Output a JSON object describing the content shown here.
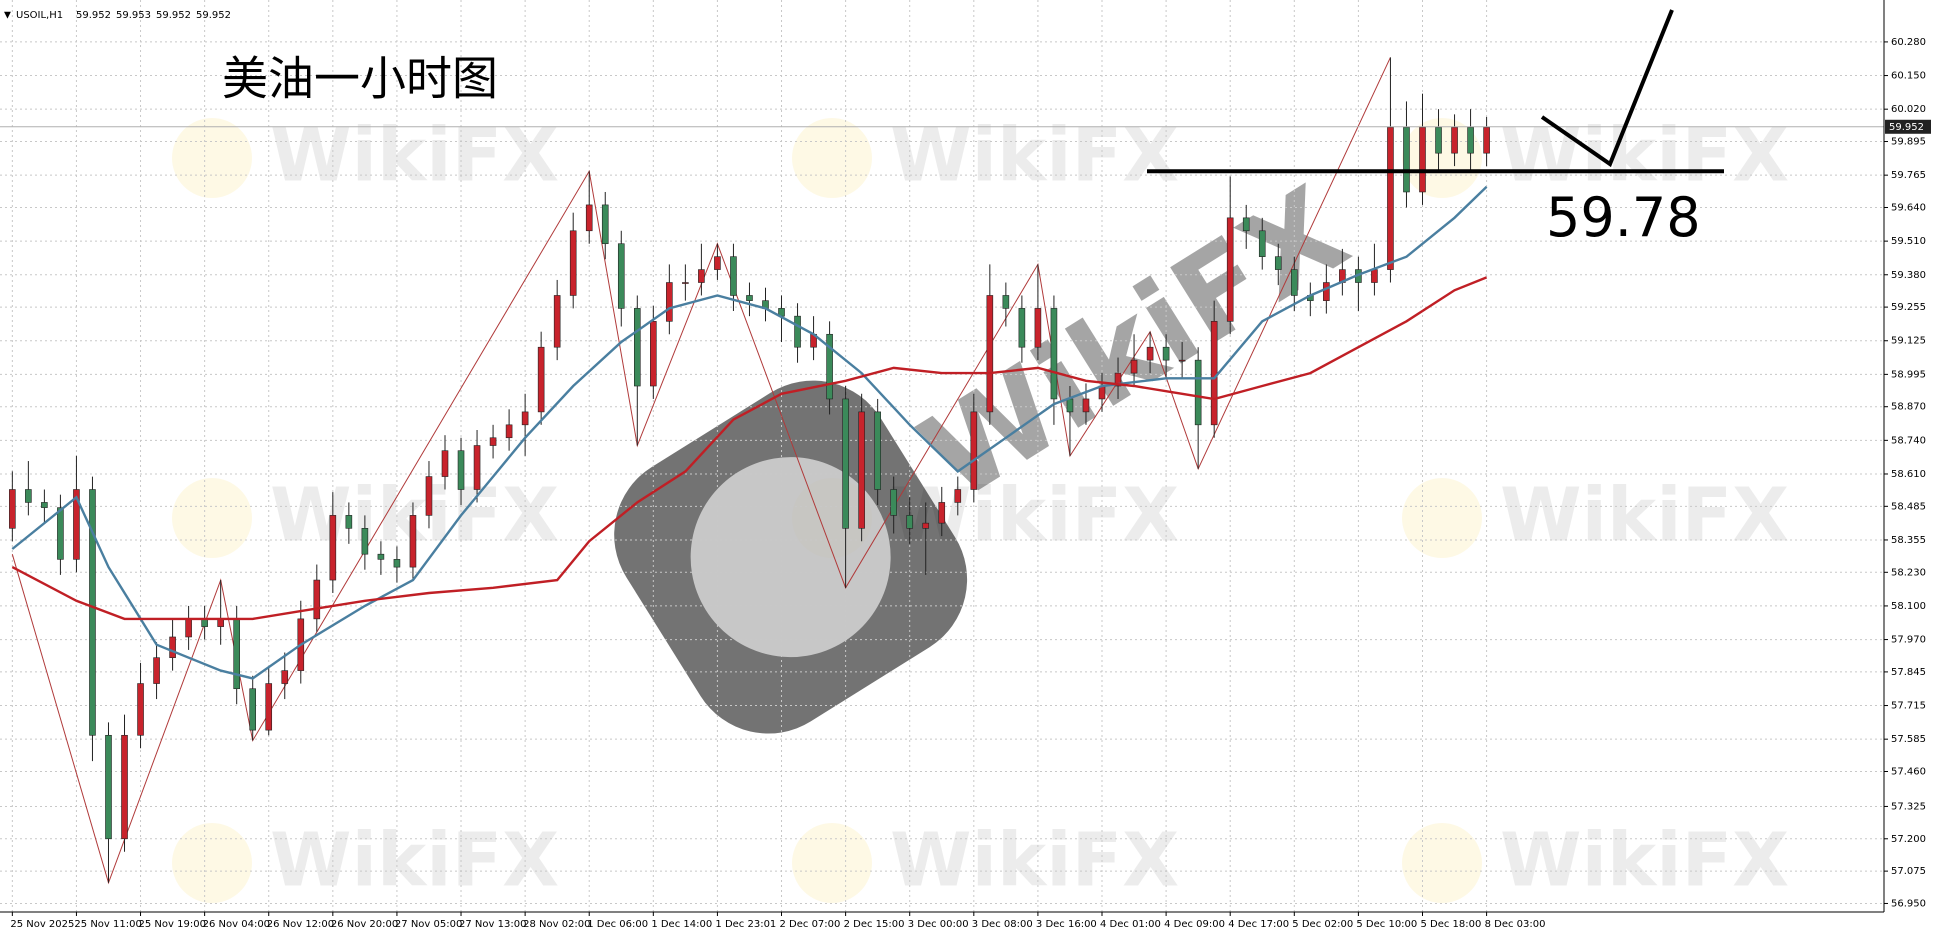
{
  "chart_data": {
    "type": "candlestick",
    "symbol": "USOIL,H1",
    "header_values": [
      59.952,
      59.953,
      59.952,
      59.952
    ],
    "title": "美油一小时图",
    "watermark": "WikiFX",
    "level": 59.78,
    "up_color": "#c8232c",
    "down_color": "#3b8a5a",
    "grid": true,
    "xlim": [
      -0.77,
      116.8
    ],
    "ylim": [
      56.917,
      60.442
    ],
    "xticks": [
      {
        "value": 0,
        "label": "25 Nov 2025"
      },
      {
        "value": 4,
        "label": "25 Nov 11:00"
      },
      {
        "value": 8,
        "label": "25 Nov 19:00"
      },
      {
        "value": 12,
        "label": "26 Nov 04:00"
      },
      {
        "value": 16,
        "label": "26 Nov 12:00"
      },
      {
        "value": 20,
        "label": "26 Nov 20:00"
      },
      {
        "value": 24,
        "label": "27 Nov 05:00"
      },
      {
        "value": 28,
        "label": "27 Nov 13:00"
      },
      {
        "value": 32,
        "label": "28 Nov 02:00"
      },
      {
        "value": 36,
        "label": "1 Dec 06:00"
      },
      {
        "value": 40,
        "label": "1 Dec 14:00"
      },
      {
        "value": 44,
        "label": "1 Dec 23:01"
      },
      {
        "value": 48,
        "label": "2 Dec 07:00"
      },
      {
        "value": 52,
        "label": "2 Dec 15:00"
      },
      {
        "value": 56,
        "label": "3 Dec 00:00"
      },
      {
        "value": 60,
        "label": "3 Dec 08:00"
      },
      {
        "value": 64,
        "label": "3 Dec 16:00"
      },
      {
        "value": 68,
        "label": "4 Dec 01:00"
      },
      {
        "value": 72,
        "label": "4 Dec 09:00"
      },
      {
        "value": 76,
        "label": "4 Dec 17:00"
      },
      {
        "value": 80,
        "label": "5 Dec 02:00"
      },
      {
        "value": 84,
        "label": "5 Dec 10:00"
      },
      {
        "value": 88,
        "label": "5 Dec 18:00"
      },
      {
        "value": 92,
        "label": "8 Dec 03:00"
      }
    ],
    "yticks": [
      {
        "value": 56.95,
        "label": "56.950"
      },
      {
        "value": 57.075,
        "label": "57.075"
      },
      {
        "value": 57.2,
        "label": "57.200"
      },
      {
        "value": 57.325,
        "label": "57.325"
      },
      {
        "value": 57.46,
        "label": "57.460"
      },
      {
        "value": 57.585,
        "label": "57.585"
      },
      {
        "value": 57.715,
        "label": "57.715"
      },
      {
        "value": 57.845,
        "label": "57.845"
      },
      {
        "value": 57.97,
        "label": "57.970"
      },
      {
        "value": 58.1,
        "label": "58.100"
      },
      {
        "value": 58.23,
        "label": "58.230"
      },
      {
        "value": 58.355,
        "label": "58.355"
      },
      {
        "value": 58.485,
        "label": "58.485"
      },
      {
        "value": 58.61,
        "label": "58.610"
      },
      {
        "value": 58.74,
        "label": "58.740"
      },
      {
        "value": 58.87,
        "label": "58.870"
      },
      {
        "value": 58.995,
        "label": "58.995"
      },
      {
        "value": 59.125,
        "label": "59.125"
      },
      {
        "value": 59.255,
        "label": "59.255"
      },
      {
        "value": 59.38,
        "label": "59.380"
      },
      {
        "value": 59.51,
        "label": "59.510"
      },
      {
        "value": 59.64,
        "label": "59.640"
      },
      {
        "value": 59.765,
        "label": "59.765"
      },
      {
        "value": 59.895,
        "label": "59.895"
      },
      {
        "value": 60.02,
        "label": "60.020"
      },
      {
        "value": 60.15,
        "label": "60.150"
      },
      {
        "value": 60.28,
        "label": "60.280"
      }
    ],
    "open": [
      58.4,
      58.55,
      58.5,
      58.48,
      58.28,
      58.55,
      57.6,
      57.2,
      57.6,
      57.8,
      57.9,
      57.98,
      58.05,
      58.02,
      58.05,
      57.78,
      57.62,
      57.8,
      57.85,
      58.05,
      58.2,
      58.45,
      58.4,
      58.3,
      58.28,
      58.25,
      58.45,
      58.6,
      58.7,
      58.55,
      58.72,
      58.75,
      58.8,
      58.85,
      59.1,
      59.3,
      59.55,
      59.65,
      59.5,
      59.25,
      58.95,
      59.2,
      59.35,
      59.35,
      59.4,
      59.45,
      59.3,
      59.28,
      59.25,
      59.22,
      59.1,
      59.15,
      58.9,
      58.4,
      58.85,
      58.55,
      58.45,
      58.4,
      58.42,
      58.5,
      58.55,
      58.85,
      59.3,
      59.25,
      59.1,
      59.25,
      58.9,
      58.85,
      58.9,
      58.95,
      59.0,
      59.05,
      59.1,
      59.05,
      59.05,
      58.8,
      59.2,
      59.6,
      59.55,
      59.45,
      59.4,
      59.3,
      59.28,
      59.35,
      59.4,
      59.35,
      59.4,
      59.95,
      59.7,
      59.95,
      59.85,
      59.95,
      59.85
    ],
    "high": [
      58.62,
      58.66,
      58.55,
      58.53,
      58.68,
      58.6,
      57.65,
      57.68,
      57.88,
      57.96,
      58.05,
      58.1,
      58.1,
      58.2,
      58.1,
      57.83,
      57.86,
      57.92,
      58.12,
      58.26,
      58.54,
      58.5,
      58.45,
      58.35,
      58.33,
      58.5,
      58.66,
      58.76,
      58.75,
      58.78,
      58.8,
      58.86,
      58.92,
      59.16,
      59.36,
      59.62,
      59.78,
      59.7,
      59.55,
      59.3,
      59.26,
      59.42,
      59.42,
      59.5,
      59.5,
      59.5,
      59.35,
      59.33,
      59.3,
      59.27,
      59.22,
      59.2,
      58.95,
      58.92,
      58.9,
      58.6,
      58.52,
      58.5,
      58.56,
      58.6,
      58.92,
      59.42,
      59.35,
      59.3,
      59.42,
      59.3,
      58.95,
      58.96,
      59.0,
      59.06,
      59.15,
      59.16,
      59.15,
      59.12,
      59.1,
      59.28,
      59.76,
      59.65,
      59.6,
      59.5,
      59.45,
      59.35,
      59.42,
      59.48,
      59.45,
      59.5,
      60.22,
      60.05,
      60.08,
      60.02,
      60.0,
      60.02,
      59.99
    ],
    "low": [
      58.35,
      58.45,
      58.42,
      58.22,
      58.23,
      57.5,
      57.03,
      57.15,
      57.55,
      57.74,
      57.85,
      57.93,
      57.97,
      57.95,
      57.72,
      57.58,
      57.6,
      57.74,
      57.8,
      58.0,
      58.15,
      58.34,
      58.24,
      58.22,
      58.19,
      58.2,
      58.4,
      58.55,
      58.49,
      58.5,
      58.67,
      58.7,
      58.68,
      58.8,
      59.05,
      59.25,
      59.5,
      59.44,
      59.18,
      58.72,
      58.9,
      59.15,
      59.28,
      59.3,
      59.36,
      59.24,
      59.22,
      59.2,
      59.12,
      59.04,
      59.05,
      58.84,
      58.17,
      58.35,
      58.49,
      58.38,
      58.34,
      58.22,
      58.37,
      58.45,
      58.5,
      58.8,
      59.18,
      59.04,
      59.05,
      58.8,
      58.68,
      58.8,
      58.85,
      58.9,
      58.95,
      59.0,
      58.98,
      58.98,
      58.63,
      58.75,
      59.15,
      59.48,
      59.4,
      59.34,
      59.24,
      59.22,
      59.23,
      59.3,
      59.24,
      59.3,
      59.35,
      59.64,
      59.65,
      59.78,
      59.8,
      59.78,
      59.8
    ],
    "close": [
      58.55,
      58.5,
      58.48,
      58.28,
      58.55,
      57.6,
      57.2,
      57.6,
      57.8,
      57.9,
      57.98,
      58.05,
      58.02,
      58.05,
      57.78,
      57.62,
      57.8,
      57.85,
      58.05,
      58.2,
      58.45,
      58.4,
      58.3,
      58.28,
      58.25,
      58.45,
      58.6,
      58.7,
      58.55,
      58.72,
      58.75,
      58.8,
      58.85,
      59.1,
      59.3,
      59.55,
      59.65,
      59.5,
      59.25,
      58.95,
      59.2,
      59.35,
      59.35,
      59.4,
      59.45,
      59.3,
      59.28,
      59.25,
      59.22,
      59.1,
      59.15,
      58.9,
      58.4,
      58.85,
      58.55,
      58.45,
      58.4,
      58.42,
      58.5,
      58.55,
      58.85,
      59.3,
      59.25,
      59.1,
      59.25,
      58.9,
      58.85,
      58.9,
      58.95,
      59.0,
      59.05,
      59.1,
      59.05,
      59.05,
      58.8,
      59.2,
      59.6,
      59.55,
      59.45,
      59.4,
      59.3,
      59.28,
      59.35,
      59.4,
      59.35,
      59.4,
      59.95,
      59.7,
      59.95,
      59.85,
      59.95,
      59.85,
      59.95
    ],
    "moving_averages": [
      {
        "color": "#4a7fa0",
        "x": [
          0,
          4,
          6,
          9,
          13,
          15,
          18,
          22,
          25,
          28,
          30,
          32,
          35,
          38,
          41,
          44,
          47,
          50,
          53,
          56,
          59,
          62,
          65,
          68,
          72,
          75,
          78,
          81,
          84,
          87,
          90,
          92
        ],
        "values": [
          58.32,
          58.52,
          58.25,
          57.95,
          57.85,
          57.82,
          57.95,
          58.1,
          58.2,
          58.45,
          58.6,
          58.75,
          58.95,
          59.12,
          59.25,
          59.3,
          59.25,
          59.15,
          59.0,
          58.8,
          58.62,
          58.75,
          58.88,
          58.95,
          58.98,
          58.98,
          59.2,
          59.3,
          59.38,
          59.45,
          59.6,
          59.72
        ]
      },
      {
        "color": "#c01f25",
        "x": [
          0,
          4,
          7,
          11,
          15,
          18,
          22,
          26,
          30,
          34,
          36,
          39,
          42,
          45,
          48,
          52,
          55,
          58,
          61,
          64,
          67,
          70,
          73,
          75,
          78,
          81,
          84,
          87,
          90,
          92
        ],
        "values": [
          58.25,
          58.12,
          58.05,
          58.05,
          58.05,
          58.08,
          58.12,
          58.15,
          58.17,
          58.2,
          58.35,
          58.5,
          58.62,
          58.82,
          58.92,
          58.97,
          59.02,
          59.0,
          59.0,
          59.02,
          58.97,
          58.95,
          58.92,
          58.9,
          58.95,
          59.0,
          59.1,
          59.2,
          59.32,
          59.37
        ]
      }
    ],
    "zigzag": {
      "color": "#b03a3a",
      "x": [
        0,
        6,
        13,
        15,
        36,
        39,
        44,
        52,
        64,
        66,
        71,
        74,
        86
      ],
      "values": [
        58.3,
        57.03,
        58.2,
        57.58,
        59.78,
        58.72,
        59.5,
        58.17,
        59.42,
        58.68,
        59.16,
        58.63,
        60.22
      ]
    }
  }
}
